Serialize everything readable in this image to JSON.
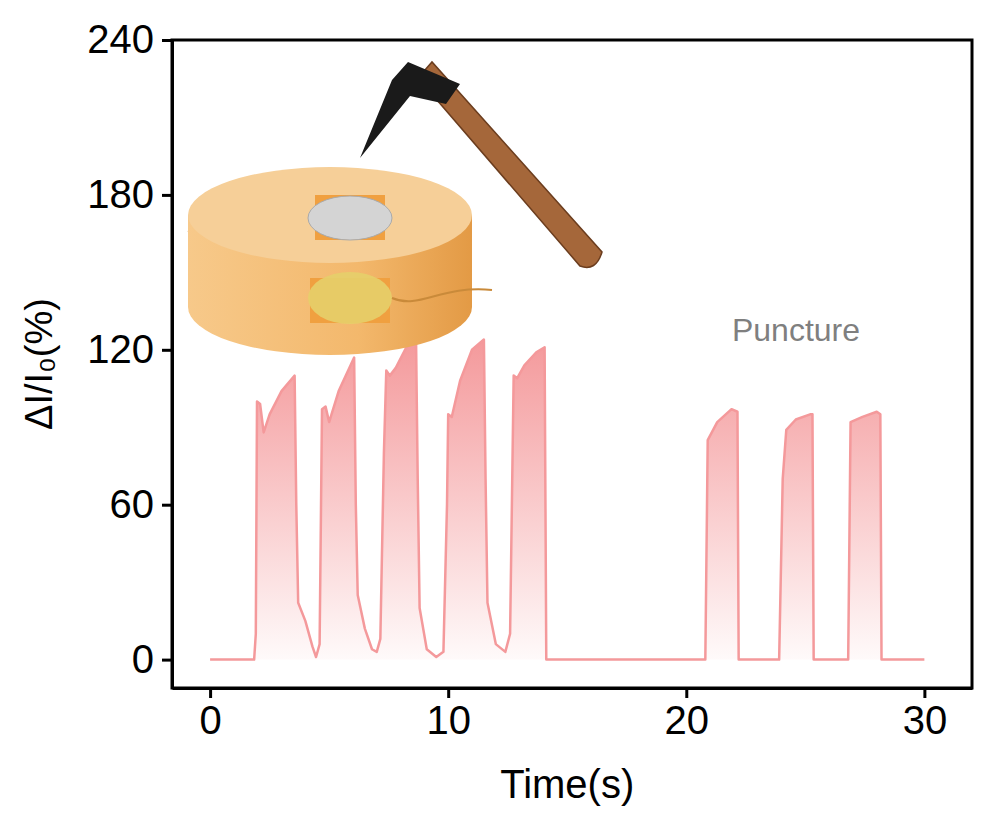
{
  "chart_data": {
    "type": "area",
    "x_label": "Time(s)",
    "y_label": "ΔI/I₀(%)",
    "annotation": "Puncture",
    "x": [
      0,
      1.85,
      1.92,
      1.97,
      2.1,
      2.25,
      2.5,
      3.0,
      3.55,
      3.62,
      3.7,
      4.0,
      4.3,
      4.45,
      4.6,
      4.7,
      4.85,
      5.0,
      5.4,
      5.9,
      6.05,
      6.12,
      6.2,
      6.5,
      6.8,
      7.0,
      7.15,
      7.3,
      7.4,
      7.55,
      7.8,
      8.3,
      8.65,
      8.72,
      8.8,
      9.1,
      9.5,
      9.8,
      9.95,
      10.0,
      10.15,
      10.5,
      11.0,
      11.5,
      11.57,
      11.65,
      12.0,
      12.4,
      12.6,
      12.75,
      12.9,
      13.2,
      13.7,
      14.05,
      14.12,
      20.8,
      20.9,
      21.3,
      21.9,
      22.15,
      22.2,
      23.9,
      24.05,
      24.2,
      24.6,
      25.2,
      25.3,
      25.35,
      26.8,
      26.9,
      27.4,
      28.0,
      28.15,
      28.2,
      30
    ],
    "values": [
      0,
      0,
      10,
      100,
      99,
      88,
      95,
      104,
      110,
      60,
      22,
      15,
      5,
      1,
      6,
      97,
      98,
      92,
      104,
      114,
      117,
      60,
      25,
      12,
      4,
      3,
      8,
      80,
      112,
      110,
      113,
      122,
      124,
      70,
      20,
      4,
      1,
      3,
      60,
      95,
      94,
      108,
      120,
      124,
      70,
      22,
      6,
      3,
      10,
      110,
      109,
      114,
      119,
      121,
      0,
      0,
      85,
      92,
      97,
      96,
      0,
      0,
      70,
      89,
      93,
      95,
      95,
      0,
      0,
      92,
      94,
      96,
      95,
      0,
      0
    ],
    "color": "#f4999b",
    "xlim": [
      -1.6,
      32
    ],
    "xticks": [
      0,
      10,
      20,
      30
    ],
    "ylim": [
      -11,
      240
    ],
    "yticks": [
      0,
      60,
      120,
      180,
      240
    ],
    "grid": false
  }
}
